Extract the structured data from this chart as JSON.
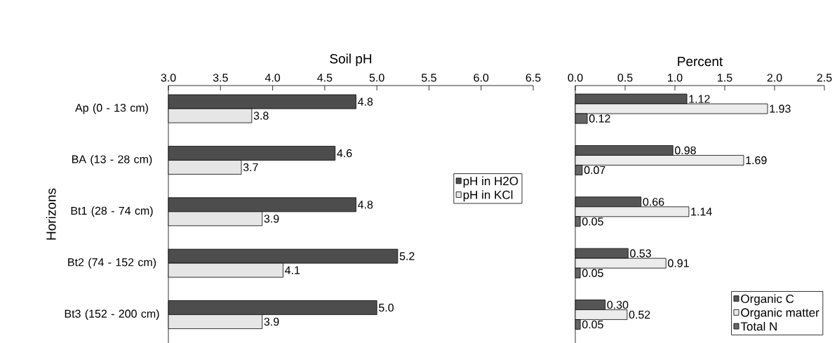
{
  "chart_data": [
    {
      "type": "bar",
      "orientation": "horizontal",
      "xlabel": "Soil pH",
      "ylabel": "Horizons",
      "categories": [
        "Ap (0 - 13 cm)",
        "BA (13 - 28 cm)",
        "Bt1 (28 - 74 cm)",
        "Bt2 (74 - 152 cm)",
        "Bt3 (152 - 200 cm)"
      ],
      "series": [
        {
          "name": "pH in H2O",
          "color": "#4d4d4d",
          "values": [
            4.8,
            4.6,
            4.8,
            5.2,
            5.0
          ],
          "value_labels": [
            "4.8",
            "4.6",
            "4.8",
            "5.2",
            "5.0"
          ]
        },
        {
          "name": "pH in KCl",
          "color": "#e6e6e6",
          "values": [
            3.8,
            3.7,
            3.9,
            4.1,
            3.9
          ],
          "value_labels": [
            "3.8",
            "3.7",
            "3.9",
            "4.1",
            "3.9"
          ]
        }
      ],
      "xlim": [
        3.0,
        6.5
      ],
      "xticks": [
        {
          "value": 3,
          "label": "3.0"
        },
        {
          "value": 3.5,
          "label": "3.5"
        },
        {
          "value": 4,
          "label": "4.0"
        },
        {
          "value": 4.5,
          "label": "4.5"
        },
        {
          "value": 5,
          "label": "5.0"
        },
        {
          "value": 5.5,
          "label": "5.5"
        },
        {
          "value": 6,
          "label": "6.0"
        },
        {
          "value": 6.5,
          "label": "6.5"
        }
      ],
      "legend": "right",
      "grid": false
    },
    {
      "type": "bar",
      "orientation": "horizontal",
      "xlabel": "Percent",
      "categories": [
        null,
        null,
        null,
        null,
        null
      ],
      "series": [
        {
          "name": "Organic C",
          "color": "#555555",
          "values": [
            1.12,
            0.98,
            0.66,
            0.53,
            0.3
          ],
          "value_labels": [
            "1.12",
            "0.98",
            "0.66",
            "0.53",
            "0.30"
          ]
        },
        {
          "name": "Organic matter",
          "color": "#ececec",
          "values": [
            1.93,
            1.69,
            1.14,
            0.91,
            0.52
          ],
          "value_labels": [
            "1.93",
            "1.69",
            "1.14",
            "0.91",
            "0.52"
          ]
        },
        {
          "name": "Total N",
          "color": "#666666",
          "values": [
            0.12,
            0.07,
            0.05,
            0.05,
            0.05
          ],
          "value_labels": [
            "0.12",
            "0.07",
            "0.05",
            "0.05",
            "0.05"
          ]
        }
      ],
      "xlim": [
        0,
        2.5
      ],
      "xticks": [
        {
          "value": 0,
          "label": "0.0"
        },
        {
          "value": 0.5,
          "label": "0.5"
        },
        {
          "value": 1,
          "label": "1.0"
        },
        {
          "value": 1.5,
          "label": "1.5"
        },
        {
          "value": 2,
          "label": "2.0"
        },
        {
          "value": 2.5,
          "label": "2.5"
        }
      ],
      "tick_labels": "x",
      "legend": "bottom right",
      "grid": false
    }
  ]
}
